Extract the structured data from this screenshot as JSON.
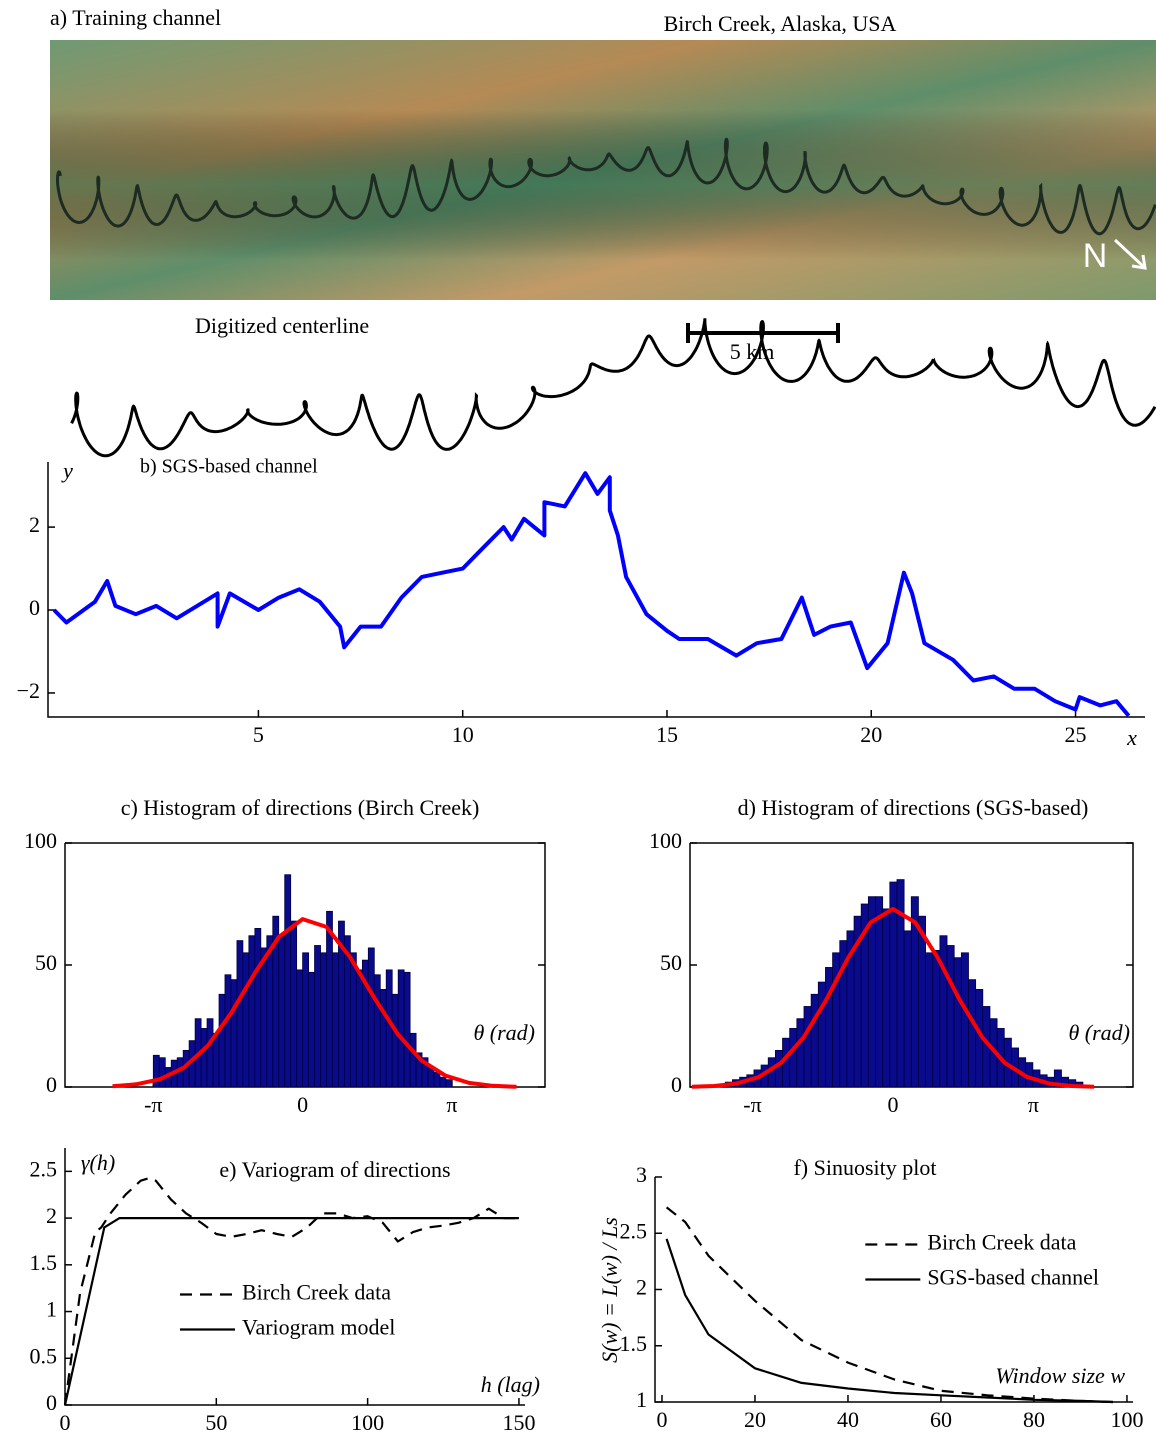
{
  "panel_a": {
    "title": "a) Training channel",
    "location": "Birch Creek, Alaska, USA",
    "north": "N",
    "centerline_label": "Digitized centerline",
    "scale": "5 km"
  },
  "chart_data": [
    {
      "type": "line",
      "title": "b) SGS-based channel",
      "xlabel": "x",
      "ylabel": "y",
      "xlim": [
        -0.15,
        26.7
      ],
      "ylim": [
        -2.58,
        3.57
      ],
      "xticks": [
        5,
        10,
        15,
        20,
        25
      ],
      "yticks": [
        {
          "value": -2,
          "label": "−2"
        },
        0,
        2
      ],
      "series": [
        {
          "color": "#0000ff",
          "linestyle": "solid",
          "x": [
            0,
            0.3,
            1,
            1.3,
            1.5,
            2,
            2.5,
            3,
            3.5,
            4,
            4,
            4.3,
            5,
            5.5,
            6,
            6.5,
            7,
            7.1,
            7.5,
            8,
            8.5,
            9,
            9.5,
            10,
            10.5,
            11,
            11.2,
            11.5,
            12,
            12,
            12.5,
            13,
            13.3,
            13.6,
            13.6,
            13.8,
            14,
            14.5,
            15,
            15.3,
            16,
            16.7,
            17.2,
            17.8,
            18.3,
            18.6,
            19,
            19.5,
            19.9,
            20.4,
            20.8,
            21,
            21.3,
            22,
            22.5,
            23,
            23.5,
            24,
            24.5,
            25,
            25.1,
            25.6,
            26,
            26.3
          ],
          "values": [
            0,
            -0.3,
            0.2,
            0.7,
            0.1,
            -0.1,
            0.1,
            -0.2,
            0.1,
            0.4,
            -0.4,
            0.4,
            0,
            0.3,
            0.5,
            0.2,
            -0.4,
            -0.9,
            -0.4,
            -0.4,
            0.3,
            0.8,
            0.9,
            1.0,
            1.5,
            2.0,
            1.7,
            2.2,
            1.8,
            2.6,
            2.5,
            3.3,
            2.8,
            3.2,
            2.4,
            1.8,
            0.8,
            -0.1,
            -0.5,
            -0.7,
            -0.7,
            -1.1,
            -0.8,
            -0.7,
            0.3,
            -0.6,
            -0.4,
            -0.3,
            -1.4,
            -0.8,
            0.9,
            0.4,
            -0.8,
            -1.2,
            -1.7,
            -1.6,
            -1.9,
            -1.9,
            -2.2,
            -2.4,
            -2.1,
            -2.3,
            -2.2,
            -2.55
          ]
        }
      ]
    },
    {
      "type": "histogram",
      "title": "c) Histogram of directions (Birch Creek)",
      "xlabel": "θ (rad)",
      "box": true,
      "xlim": [
        -5,
        5.1
      ],
      "ylim": [
        0,
        100
      ],
      "xticks": [
        {
          "value": -3.14159,
          "label": "-π"
        },
        0,
        {
          "value": 3.14159,
          "label": "π"
        }
      ],
      "yticks": [
        0,
        50,
        100
      ],
      "color": "#0a0a8c",
      "bins": [
        -3.142,
        -3.016,
        -2.89,
        -2.765,
        -2.639,
        -2.513,
        -2.388,
        -2.262,
        -2.136,
        -2.011,
        -1.885,
        -1.759,
        -1.634,
        -1.508,
        -1.382,
        -1.257,
        -1.131,
        -1.005,
        -0.88,
        -0.754,
        -0.628,
        -0.503,
        -0.377,
        -0.251,
        -0.126,
        0,
        0.126,
        0.251,
        0.377,
        0.503,
        0.628,
        0.754,
        0.88,
        1.005,
        1.131,
        1.257,
        1.382,
        1.508,
        1.634,
        1.759,
        1.885,
        2.011,
        2.136,
        2.262,
        2.388,
        2.513,
        2.639,
        2.765,
        2.89,
        3.016,
        3.142
      ],
      "values": [
        13,
        12,
        8,
        11,
        12,
        15,
        19,
        28,
        24,
        28,
        22,
        38,
        46,
        44,
        60,
        55,
        62,
        65,
        57,
        62,
        70,
        62,
        87,
        68,
        48,
        55,
        47,
        58,
        55,
        72,
        55,
        68,
        62,
        55,
        48,
        52,
        57,
        46,
        40,
        48,
        38,
        48,
        47,
        22,
        14,
        12,
        8,
        6,
        4,
        3
      ],
      "curve": {
        "color": "#ff0000",
        "x": [
          -4,
          -3.5,
          -3,
          -2.5,
          -2,
          -1.5,
          -1,
          -0.5,
          0,
          0.5,
          1,
          1.5,
          2,
          2.5,
          3,
          3.5,
          4,
          4.5
        ],
        "values": [
          0.3,
          1.1,
          3.2,
          7.9,
          16.8,
          30.4,
          46.9,
          61.5,
          68.8,
          65.6,
          53.2,
          36.8,
          21.7,
          10.9,
          4.7,
          1.7,
          0.5,
          0.1
        ]
      }
    },
    {
      "type": "histogram",
      "title": "d) Histogram of directions (SGS-based)",
      "xlabel": "θ (rad)",
      "box": true,
      "xlim": [
        -4.54,
        5.37
      ],
      "ylim": [
        0,
        100
      ],
      "xticks": [
        {
          "value": -3.14159,
          "label": "-π"
        },
        0,
        {
          "value": 3.14159,
          "label": "π"
        }
      ],
      "yticks": [
        0,
        50,
        100
      ],
      "color": "#0a0a8c",
      "bins": [
        -3.75,
        -3.59,
        -3.43,
        -3.27,
        -3.11,
        -2.95,
        -2.79,
        -2.63,
        -2.47,
        -2.31,
        -2.15,
        -1.99,
        -1.83,
        -1.67,
        -1.51,
        -1.35,
        -1.19,
        -1.03,
        -0.87,
        -0.71,
        -0.55,
        -0.39,
        -0.23,
        -0.07,
        0.09,
        0.25,
        0.41,
        0.57,
        0.73,
        0.89,
        1.05,
        1.21,
        1.37,
        1.53,
        1.69,
        1.85,
        2.01,
        2.17,
        2.33,
        2.49,
        2.65,
        2.81,
        2.97,
        3.13,
        3.29,
        3.45,
        3.61,
        3.77,
        3.93,
        4.09,
        4.25
      ],
      "values": [
        2,
        3,
        4,
        5,
        7,
        9,
        12,
        15,
        20,
        24,
        28,
        33,
        38,
        43,
        49,
        55,
        60,
        64,
        70,
        75,
        78,
        78,
        73,
        84,
        85,
        64,
        78,
        70,
        55,
        56,
        62,
        58,
        53,
        55,
        44,
        40,
        33,
        28,
        24,
        20,
        16,
        12,
        10,
        7,
        5,
        4,
        7,
        4,
        3,
        2
      ],
      "curve": {
        "color": "#ff0000",
        "x": [
          -4.5,
          -4,
          -3.5,
          -3,
          -2.5,
          -2,
          -1.5,
          -1,
          -0.5,
          0,
          0.5,
          1,
          1.5,
          2,
          2.5,
          3,
          3.5,
          4,
          4.5
        ],
        "values": [
          0.1,
          0.4,
          1.4,
          4.1,
          9.9,
          20.3,
          35.5,
          53,
          67.4,
          73,
          67.4,
          53,
          35.5,
          20.3,
          9.9,
          4.1,
          1.4,
          0.4,
          0.1
        ]
      }
    },
    {
      "type": "line",
      "title": "e) Variogram of directions",
      "xlabel": "h (lag)",
      "ylabel": "γ(h)",
      "legend": "center left",
      "xlim": [
        0,
        152
      ],
      "ylim": [
        0,
        2.75
      ],
      "xticks": [
        0,
        50,
        100,
        150
      ],
      "yticks": [
        0,
        0.5,
        1,
        1.5,
        2,
        2.5
      ],
      "series": [
        {
          "name": "Birch Creek data",
          "color": "#000000",
          "linestyle": "dashed",
          "x": [
            0,
            5,
            10,
            12,
            15,
            20,
            25,
            28,
            30,
            35,
            40,
            45,
            50,
            55,
            60,
            65,
            70,
            75,
            80,
            85,
            90,
            95,
            100,
            105,
            110,
            115,
            120,
            125,
            130,
            135,
            140,
            145,
            150
          ],
          "values": [
            0,
            1.2,
            1.85,
            1.9,
            2.05,
            2.25,
            2.4,
            2.43,
            2.4,
            2.2,
            2.05,
            1.95,
            1.83,
            1.8,
            1.83,
            1.87,
            1.83,
            1.8,
            1.9,
            2.05,
            2.05,
            2.0,
            2.02,
            1.95,
            1.75,
            1.85,
            1.9,
            1.92,
            1.95,
            2.0,
            2.1,
            2.0,
            2.0
          ]
        },
        {
          "name": "Variogram model",
          "color": "#000000",
          "linestyle": "solid",
          "x": [
            0,
            13,
            18,
            150
          ],
          "values": [
            0,
            1.9,
            2,
            2
          ]
        }
      ]
    },
    {
      "type": "line",
      "title": "f) Sinuosity plot",
      "xlabel": "Window size w",
      "ylabel": "S(w) = L(w) / Ls",
      "legend": "upper right",
      "xlim": [
        -1.5,
        101.3
      ],
      "ylim": [
        1,
        3
      ],
      "xticks": [
        0,
        20,
        40,
        60,
        80,
        100
      ],
      "yticks": [
        1,
        1.5,
        2,
        2.5,
        3
      ],
      "series": [
        {
          "name": "Birch Creek data",
          "color": "#000000",
          "linestyle": "dashed",
          "x": [
            1,
            5,
            10,
            15,
            20,
            30,
            40,
            50,
            60,
            70,
            80,
            90,
            97
          ],
          "values": [
            2.73,
            2.6,
            2.3,
            2.1,
            1.9,
            1.55,
            1.35,
            1.2,
            1.1,
            1.06,
            1.03,
            1.01,
            1.0
          ]
        },
        {
          "name": "SGS-based channel",
          "color": "#000000",
          "linestyle": "solid",
          "x": [
            1,
            5,
            10,
            15,
            20,
            30,
            40,
            50,
            60,
            70,
            80,
            90,
            97
          ],
          "values": [
            2.45,
            1.95,
            1.6,
            1.45,
            1.3,
            1.17,
            1.12,
            1.08,
            1.06,
            1.04,
            1.02,
            1.01,
            1.0
          ]
        }
      ]
    }
  ]
}
